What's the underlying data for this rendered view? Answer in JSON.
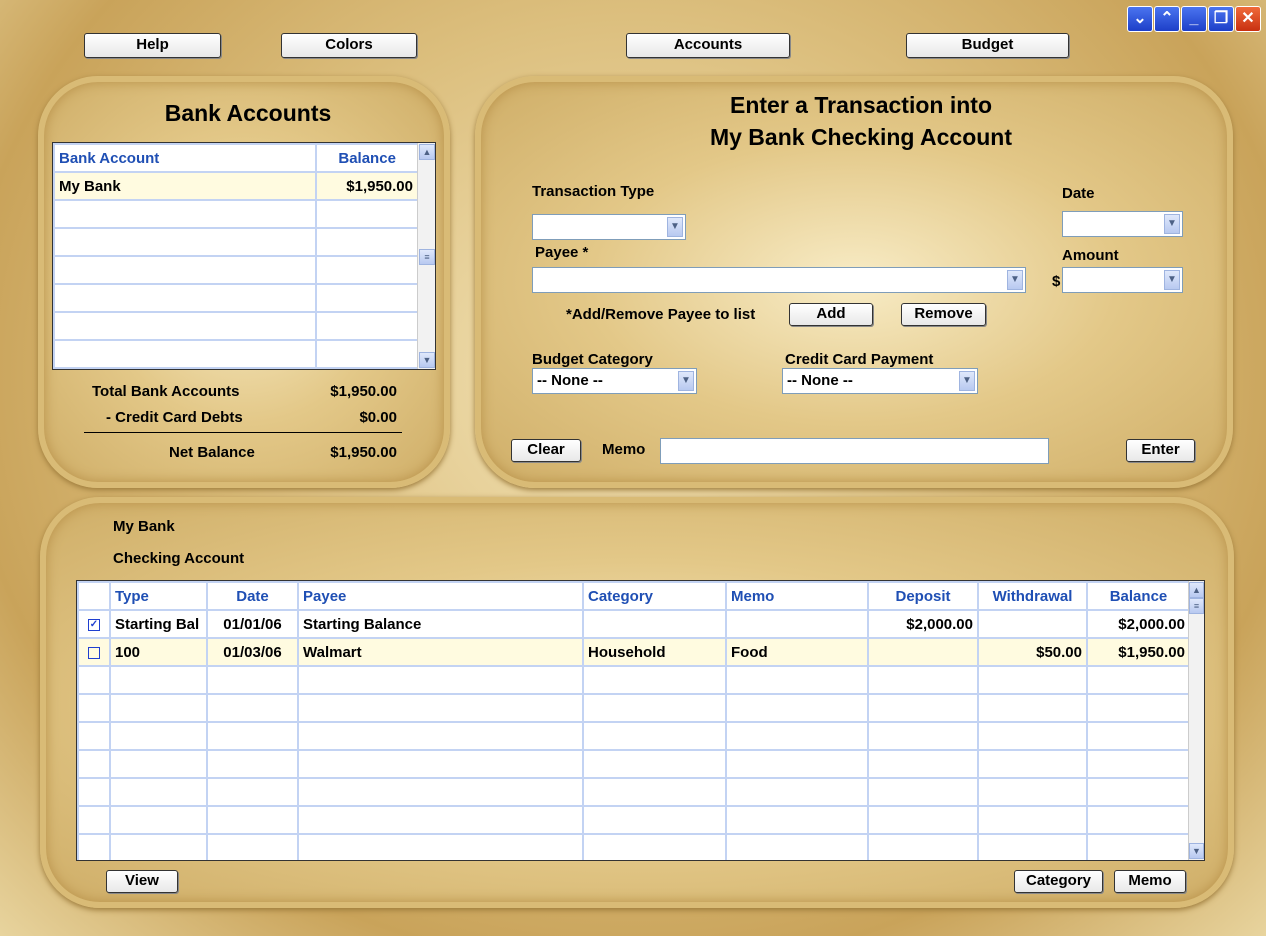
{
  "window_controls": {
    "scroll_down": "⌄",
    "scroll_up": "⌃",
    "minimize": "_",
    "restore": "❐",
    "close": "✕"
  },
  "toolbar": {
    "help": "Help",
    "colors": "Colors",
    "accounts": "Accounts",
    "budget": "Budget"
  },
  "bank_accounts": {
    "title": "Bank Accounts",
    "columns": [
      "Bank Account",
      "Balance"
    ],
    "rows": [
      {
        "name": "My Bank",
        "balance": "$1,950.00"
      }
    ],
    "total_label": "Total Bank Accounts",
    "total_value": "$1,950.00",
    "credit_label": "- Credit Card Debts",
    "credit_value": "$0.00",
    "net_label": "Net Balance",
    "net_value": "$1,950.00"
  },
  "entry": {
    "title_line1": "Enter a Transaction into",
    "title_line2": "My Bank Checking Account",
    "transaction_type_label": "Transaction Type",
    "transaction_type_value": "",
    "date_label": "Date",
    "date_value": "",
    "payee_label": "Payee *",
    "payee_value": "",
    "amount_label": "Amount",
    "currency": "$",
    "amount_value": "",
    "add_remove_label": "*Add/Remove Payee to list",
    "add": "Add",
    "remove": "Remove",
    "budget_category_label": "Budget Category",
    "budget_category_value": "-- None --",
    "credit_card_label": "Credit Card Payment",
    "credit_card_value": "-- None --",
    "clear": "Clear",
    "memo_label": "Memo",
    "memo_value": "",
    "enter": "Enter"
  },
  "register": {
    "bank": "My Bank",
    "account": "Checking Account",
    "columns": [
      "",
      "Type",
      "Date",
      "Payee",
      "Category",
      "Memo",
      "Deposit",
      "Withdrawal",
      "Balance"
    ],
    "rows": [
      {
        "checked": true,
        "type": "Starting Bal",
        "date": "01/01/06",
        "payee": "Starting Balance",
        "category": "",
        "memo": "",
        "deposit": "$2,000.00",
        "withdrawal": "",
        "balance": "$2,000.00"
      },
      {
        "checked": false,
        "type": "100",
        "date": "01/03/06",
        "payee": "Walmart",
        "category": "Household",
        "memo": "Food",
        "deposit": "",
        "withdrawal": "$50.00",
        "balance": "$1,950.00"
      }
    ],
    "view": "View",
    "category": "Category",
    "memo": "Memo"
  }
}
